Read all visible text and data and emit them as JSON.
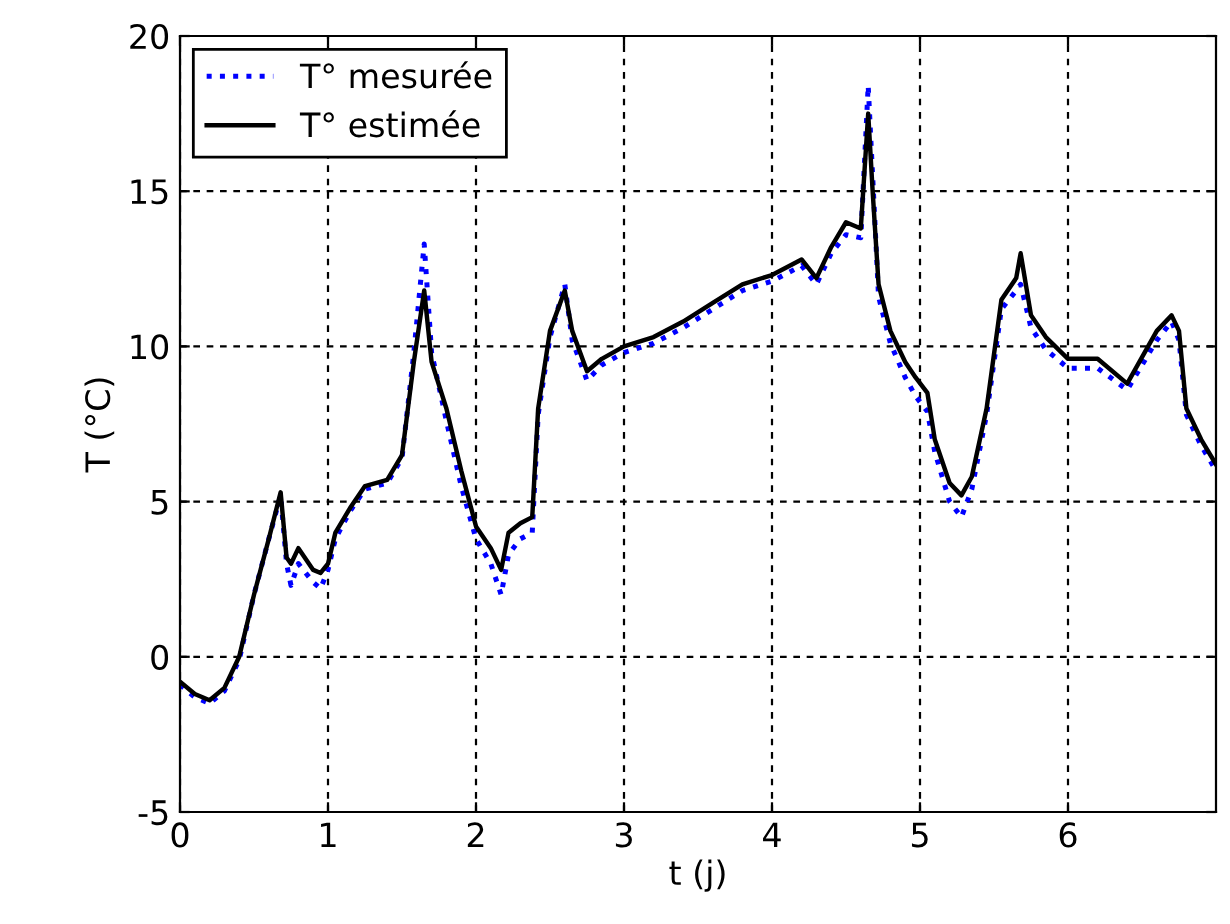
{
  "chart_data": {
    "type": "line",
    "xlabel": "t (j)",
    "ylabel": "T (°C)",
    "xlim": [
      0,
      7
    ],
    "ylim": [
      -5,
      20
    ],
    "xticks": [
      0,
      1,
      2,
      3,
      4,
      5,
      6
    ],
    "yticks": [
      -5,
      0,
      5,
      10,
      15,
      20
    ],
    "grid": true,
    "legend": "top left",
    "x": [
      0,
      0.1,
      0.2,
      0.3,
      0.4,
      0.5,
      0.6,
      0.68,
      0.72,
      0.75,
      0.8,
      0.9,
      0.95,
      1.0,
      1.05,
      1.15,
      1.25,
      1.4,
      1.5,
      1.58,
      1.65,
      1.7,
      1.8,
      1.9,
      2.0,
      2.1,
      2.17,
      2.22,
      2.3,
      2.38,
      2.42,
      2.5,
      2.6,
      2.65,
      2.75,
      2.85,
      3.0,
      3.2,
      3.4,
      3.6,
      3.8,
      4.0,
      4.2,
      4.3,
      4.4,
      4.5,
      4.6,
      4.65,
      4.68,
      4.72,
      4.8,
      4.9,
      4.97,
      5.05,
      5.1,
      5.2,
      5.28,
      5.35,
      5.45,
      5.55,
      5.65,
      5.68,
      5.75,
      5.85,
      6.0,
      6.2,
      6.4,
      6.6,
      6.7,
      6.75,
      6.8,
      6.9,
      7.0
    ],
    "series": [
      {
        "name": "T° mesurée",
        "color": "#0000ff",
        "line_style": "dotted",
        "values": [
          -0.9,
          -1.3,
          -1.5,
          -1.1,
          -0.1,
          2,
          3.8,
          5.2,
          3.0,
          2.3,
          3.0,
          2.4,
          2.2,
          2.8,
          3.8,
          4.7,
          5.4,
          5.6,
          6.4,
          9.8,
          13.3,
          9.8,
          7.6,
          5.5,
          3.8,
          3.0,
          2.0,
          3.3,
          3.8,
          4.0,
          7.8,
          10.3,
          12.0,
          10.2,
          8.9,
          9.4,
          9.8,
          10.1,
          10.6,
          11.2,
          11.8,
          12.1,
          12.6,
          12.0,
          13.0,
          13.6,
          13.5,
          18.4,
          15.5,
          11.6,
          10.1,
          9.0,
          8.4,
          7.9,
          6.6,
          5.0,
          4.5,
          5.4,
          7.8,
          11.2,
          11.8,
          12.0,
          10.6,
          9.9,
          9.3,
          9.3,
          8.6,
          10.2,
          10.8,
          10.2,
          7.8,
          6.8,
          6.0
        ]
      },
      {
        "name": "T° estimée",
        "color": "#000000",
        "line_style": "solid",
        "values": [
          -0.8,
          -1.2,
          -1.4,
          -1.0,
          0,
          2,
          3.8,
          5.3,
          3.2,
          3.0,
          3.5,
          2.8,
          2.7,
          3.0,
          4.0,
          4.8,
          5.5,
          5.7,
          6.5,
          9.5,
          11.8,
          9.5,
          8.0,
          6.0,
          4.2,
          3.5,
          2.8,
          4.0,
          4.3,
          4.5,
          8.0,
          10.5,
          11.8,
          10.5,
          9.2,
          9.6,
          10.0,
          10.3,
          10.8,
          11.4,
          12.0,
          12.3,
          12.8,
          12.2,
          13.2,
          14.0,
          13.8,
          17.5,
          15.0,
          12.0,
          10.5,
          9.5,
          9.0,
          8.5,
          7.0,
          5.6,
          5.2,
          5.8,
          8.0,
          11.5,
          12.2,
          13.0,
          11.0,
          10.3,
          9.6,
          9.6,
          8.8,
          10.5,
          11.0,
          10.5,
          8.0,
          7.0,
          6.2
        ]
      }
    ]
  }
}
